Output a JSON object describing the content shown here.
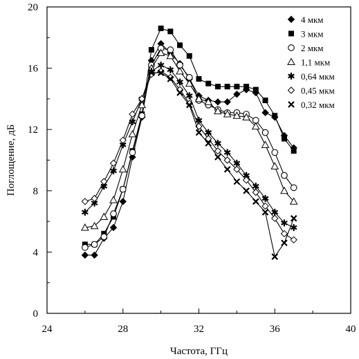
{
  "chart_data": {
    "type": "line",
    "xlabel": "Частота, ГГц",
    "ylabel": "Поглощение, дБ",
    "xlim": [
      24,
      40
    ],
    "ylim": [
      0,
      20
    ],
    "xticks": [
      24,
      28,
      32,
      36,
      40
    ],
    "yticks": [
      0,
      4,
      8,
      12,
      16,
      20
    ],
    "x_tick_labels": [
      "24",
      "28",
      "32",
      "36",
      "40"
    ],
    "y_tick_labels": [
      "0",
      "4",
      "8",
      "12",
      "16",
      "20"
    ],
    "grid": false,
    "legend_position": "top-right",
    "series": [
      {
        "name": "4 мкм",
        "marker": "diamond-filled",
        "x": [
          26,
          26.5,
          27,
          27.5,
          28,
          28.5,
          29,
          29.5,
          30,
          30.5,
          31,
          31.5,
          32,
          32.5,
          33,
          33.5,
          34,
          34.5,
          35,
          35.5,
          36,
          36.5,
          37
        ],
        "y": [
          3.8,
          3.8,
          4.9,
          5.6,
          7.3,
          10.2,
          12.8,
          16.5,
          17.6,
          17.0,
          16.3,
          15.3,
          14.2,
          13.9,
          13.8,
          13.8,
          14.3,
          14.6,
          14.4,
          13.1,
          12.8,
          11.6,
          10.8
        ]
      },
      {
        "name": "3 мкм",
        "marker": "square-filled",
        "x": [
          26,
          26.5,
          27,
          27.5,
          28,
          28.5,
          29,
          29.5,
          30,
          30.5,
          31,
          31.5,
          32,
          32.5,
          33,
          33.5,
          34,
          34.5,
          35,
          35.5,
          36,
          36.5,
          37
        ],
        "y": [
          4.5,
          4.5,
          5.2,
          6.3,
          8.1,
          10.6,
          13.0,
          17.2,
          18.6,
          18.4,
          17.5,
          16.8,
          15.3,
          15.0,
          14.8,
          14.8,
          14.8,
          14.8,
          14.6,
          13.9,
          12.9,
          11.4,
          10.6
        ]
      },
      {
        "name": "2 мкм",
        "marker": "circle-open",
        "x": [
          26,
          26.5,
          27,
          27.5,
          28,
          28.5,
          29,
          29.5,
          30,
          30.5,
          31,
          31.5,
          32,
          32.5,
          33,
          33.5,
          34,
          34.5,
          35,
          35.5,
          36,
          36.5,
          37
        ],
        "y": [
          4.3,
          4.5,
          5.0,
          6.5,
          8.1,
          10.5,
          12.9,
          16.2,
          17.3,
          17.2,
          16.2,
          15.4,
          13.9,
          13.6,
          13.3,
          13.1,
          13.1,
          13.0,
          12.6,
          11.8,
          10.5,
          9.0,
          8.2
        ]
      },
      {
        "name": "1,1 мкм",
        "marker": "triangle-open",
        "x": [
          26,
          26.5,
          27,
          27.5,
          28,
          28.5,
          29,
          29.5,
          30,
          30.5,
          31,
          31.5,
          32,
          32.5,
          33,
          33.5,
          34,
          34.5,
          35,
          35.5,
          36,
          36.5,
          37
        ],
        "y": [
          5.6,
          5.7,
          6.3,
          7.4,
          9.4,
          11.7,
          13.6,
          16.0,
          17.0,
          16.8,
          15.8,
          15.0,
          14.0,
          13.8,
          13.2,
          13.0,
          12.9,
          12.8,
          12.2,
          11.0,
          9.6,
          8.0,
          7.3
        ]
      },
      {
        "name": "0,64 мкм",
        "marker": "star-filled",
        "x": [
          26,
          26.5,
          27,
          27.5,
          28,
          28.5,
          29,
          29.5,
          30,
          30.5,
          31,
          31.5,
          32,
          32.5,
          33,
          33.5,
          34,
          34.5,
          35,
          35.5,
          36,
          36.5,
          37
        ],
        "y": [
          6.6,
          7.2,
          8.3,
          9.3,
          11.0,
          12.5,
          14.0,
          15.8,
          16.2,
          15.9,
          15.1,
          14.2,
          12.6,
          11.8,
          11.1,
          10.5,
          9.8,
          9.0,
          8.3,
          7.5,
          6.6,
          5.9,
          5.6
        ]
      },
      {
        "name": "0,45 мкм",
        "marker": "diamond-open",
        "x": [
          26,
          26.5,
          27,
          27.5,
          28,
          28.5,
          29,
          29.5,
          30,
          30.5,
          31,
          31.5,
          32,
          32.5,
          33,
          33.5,
          34,
          34.5,
          35,
          35.5,
          36,
          36.5,
          37
        ],
        "y": [
          7.3,
          7.5,
          8.6,
          9.8,
          11.3,
          13.0,
          14.0,
          15.6,
          15.8,
          15.4,
          14.6,
          13.7,
          12.2,
          11.4,
          10.6,
          10.0,
          9.4,
          8.7,
          7.9,
          7.0,
          6.2,
          5.2,
          4.8
        ]
      },
      {
        "name": "0,32 мкм",
        "marker": "cross",
        "x": [
          29.5,
          30,
          30.5,
          31,
          31.5,
          32,
          32.5,
          33,
          33.5,
          34,
          34.5,
          35,
          35.5,
          36,
          36.5,
          37
        ],
        "y": [
          15.7,
          15.7,
          15.3,
          14.4,
          13.6,
          11.8,
          11.1,
          10.2,
          9.4,
          8.6,
          8.0,
          7.3,
          6.6,
          3.7,
          4.6,
          6.2
        ]
      }
    ]
  }
}
